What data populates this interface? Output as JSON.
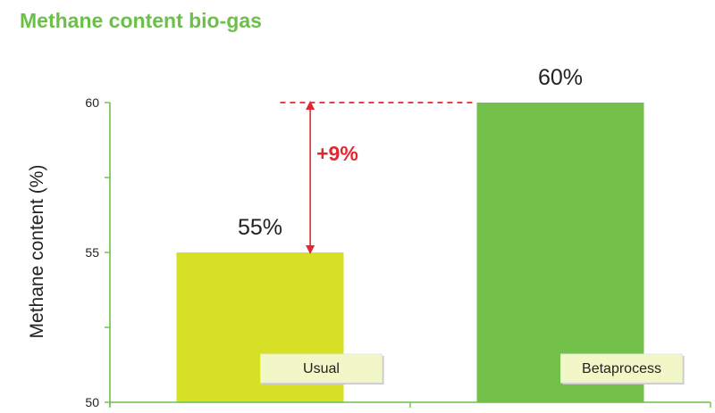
{
  "chart_data": {
    "type": "bar",
    "title": "Methane content bio-gas",
    "ylabel": "Methane content (%)",
    "xlabel": "",
    "categories": [
      "Usual",
      "Betaprocess"
    ],
    "values": [
      55,
      60
    ],
    "data_labels": [
      "55%",
      "60%"
    ],
    "ylim": [
      50,
      60
    ],
    "yticks": [
      50,
      55,
      60
    ],
    "grid": false,
    "annotation": {
      "text": "+9%",
      "from": "Usual",
      "to": "Betaprocess"
    },
    "colors": {
      "bars": [
        "#d6e024",
        "#73c04b"
      ],
      "axis": "#6cc04a",
      "annotation": "#e02830",
      "title": "#6cc04a"
    }
  }
}
